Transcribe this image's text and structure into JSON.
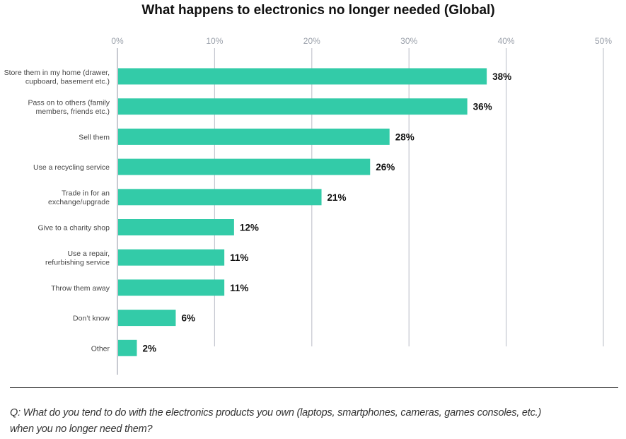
{
  "chart_data": {
    "type": "bar",
    "orientation": "horizontal",
    "title": "What happens to electronics no longer needed (Global)",
    "xlabel": "",
    "ylabel": "",
    "xlim": [
      0,
      50
    ],
    "x_ticks": [
      0,
      10,
      20,
      30,
      40,
      50
    ],
    "x_tick_labels": [
      "0%",
      "10%",
      "20%",
      "30%",
      "40%",
      "50%"
    ],
    "grid": true,
    "categories": [
      [
        "Store them in my home (drawer,",
        "cupboard, basement etc.)"
      ],
      [
        "Pass on to others (family",
        "members, friends etc.)"
      ],
      [
        "Sell them"
      ],
      [
        "Use a recycling service"
      ],
      [
        "Trade in for an",
        "exchange/upgrade"
      ],
      [
        "Give to a charity shop"
      ],
      [
        "Use a repair,",
        "refurbishing service"
      ],
      [
        "Throw them away"
      ],
      [
        "Don’t know"
      ],
      [
        "Other"
      ]
    ],
    "values": [
      38,
      36,
      28,
      26,
      21,
      12,
      11,
      11,
      6,
      2
    ],
    "data_labels": [
      "38%",
      "36%",
      "28%",
      "26%",
      "21%",
      "12%",
      "11%",
      "11%",
      "6%",
      "2%"
    ],
    "bar_color": "#33cba8"
  },
  "footnote": {
    "line1": "Q: What do you tend to do with the electronics products you own (laptops, smartphones, cameras, games consoles, etc.)",
    "line2": "when you no longer need them?"
  }
}
